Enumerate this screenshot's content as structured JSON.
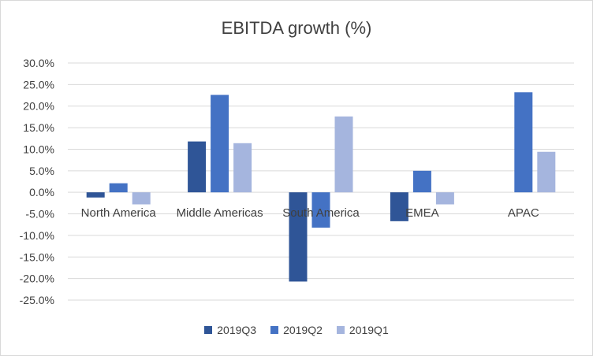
{
  "chart_data": {
    "type": "bar",
    "title": "EBITDA growth (%)",
    "categories": [
      "North America",
      "Middle Americas",
      "South America",
      "EMEA",
      "APAC"
    ],
    "series": [
      {
        "name": "2019Q3",
        "color": "#2f5597",
        "values": [
          -1.2,
          11.8,
          -20.7,
          -6.7,
          0.0
        ]
      },
      {
        "name": "2019Q2",
        "color": "#4472c4",
        "values": [
          2.1,
          22.6,
          -8.2,
          5.0,
          23.2
        ]
      },
      {
        "name": "2019Q1",
        "color": "#a5b5de",
        "values": [
          -2.8,
          11.4,
          17.6,
          -2.8,
          9.4
        ]
      }
    ],
    "ylim": [
      -25,
      30
    ],
    "yticks": [
      30,
      25,
      20,
      15,
      10,
      5,
      0,
      -5,
      -10,
      -15,
      -20,
      -25
    ],
    "ytick_labels": [
      "30.0%",
      "25.0%",
      "20.0%",
      "15.0%",
      "10.0%",
      "5.0%",
      "0.0%",
      "-5.0%",
      "-10.0%",
      "-15.0%",
      "-20.0%",
      "-25.0%"
    ],
    "grid": true,
    "legend": "bottom"
  }
}
